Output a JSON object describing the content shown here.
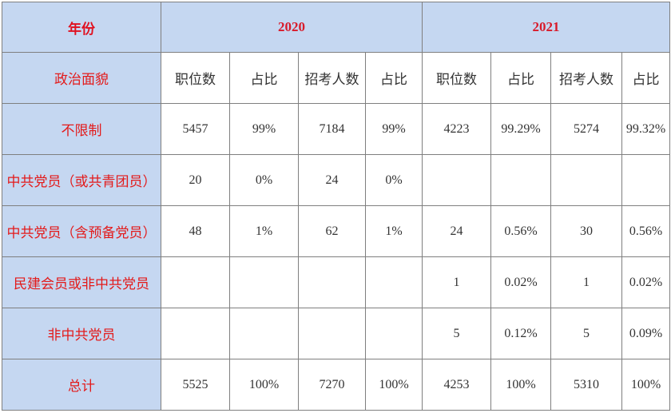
{
  "table": {
    "corner_label": "年份",
    "years": [
      "2020",
      "2021"
    ],
    "row_header_label": "政治面貌",
    "column_headers": [
      "职位数",
      "占比",
      "招考人数",
      "占比",
      "职位数",
      "占比",
      "招考人数",
      "占比"
    ],
    "rows": [
      {
        "label": "不限制",
        "cells": [
          "5457",
          "99%",
          "7184",
          "99%",
          "4223",
          "99.29%",
          "5274",
          "99.32%"
        ]
      },
      {
        "label": "中共党员（或共青团员）",
        "cells": [
          "20",
          "0%",
          "24",
          "0%",
          "",
          "",
          "",
          ""
        ]
      },
      {
        "label": "中共党员（含预备党员）",
        "cells": [
          "48",
          "1%",
          "62",
          "1%",
          "24",
          "0.56%",
          "30",
          "0.56%"
        ]
      },
      {
        "label": "民建会员或非中共党员",
        "cells": [
          "",
          "",
          "",
          "",
          "1",
          "0.02%",
          "1",
          "0.02%"
        ]
      },
      {
        "label": "非中共党员",
        "cells": [
          "",
          "",
          "",
          "",
          "5",
          "0.12%",
          "5",
          "0.09%"
        ]
      },
      {
        "label": "总计",
        "cells": [
          "5525",
          "100%",
          "7270",
          "100%",
          "4253",
          "100%",
          "5310",
          "100%"
        ]
      }
    ]
  },
  "colors": {
    "header_bg": "#c5d7f1",
    "label_text": "#e31a1a",
    "body_text": "#333333",
    "border": "#7f7f7f"
  }
}
